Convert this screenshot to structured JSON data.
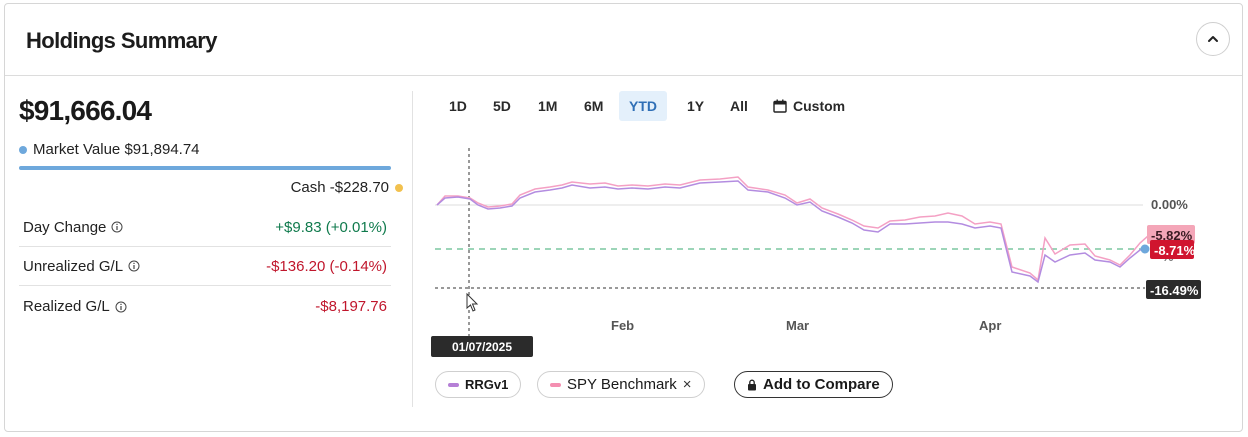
{
  "header": {
    "title": "Holdings Summary"
  },
  "summary": {
    "total_value": "$91,666.04",
    "market_value_label": "Market Value",
    "market_value": "$91,894.74",
    "cash_label": "Cash",
    "cash_value": "-$228.70",
    "market_value_color": "#6ea8dc",
    "cash_color": "#f2c14e"
  },
  "metrics": [
    {
      "label": "Day Change",
      "value": "+$9.83 (+0.01%)"
    },
    {
      "label": "Unrealized G/L",
      "value": "-$136.20 (-0.14%)"
    },
    {
      "label": "Realized G/L",
      "value": "-$8,197.76"
    }
  ],
  "ranges": [
    {
      "label": "1D"
    },
    {
      "label": "5D"
    },
    {
      "label": "1M"
    },
    {
      "label": "6M"
    },
    {
      "label": "YTD",
      "active": true
    },
    {
      "label": "1Y"
    },
    {
      "label": "All"
    },
    {
      "label": "Custom"
    }
  ],
  "chart_data": {
    "type": "line",
    "x_ticks": [
      "Feb",
      "Mar",
      "Apr"
    ],
    "y_labels": [
      "0.00%",
      "-5.82%",
      "-8.71%",
      "-16.49%"
    ],
    "hover_date": "01/07/2025",
    "series": [
      {
        "name": "RRGv1",
        "color": "#b57fd6"
      },
      {
        "name": "SPY Benchmark",
        "color": "#f48fb1"
      }
    ]
  },
  "legend": {
    "rrg_label": "RRGv1",
    "spy_label": "SPY Benchmark",
    "remove_symbol": "×",
    "add_label": "Add to Compare"
  }
}
